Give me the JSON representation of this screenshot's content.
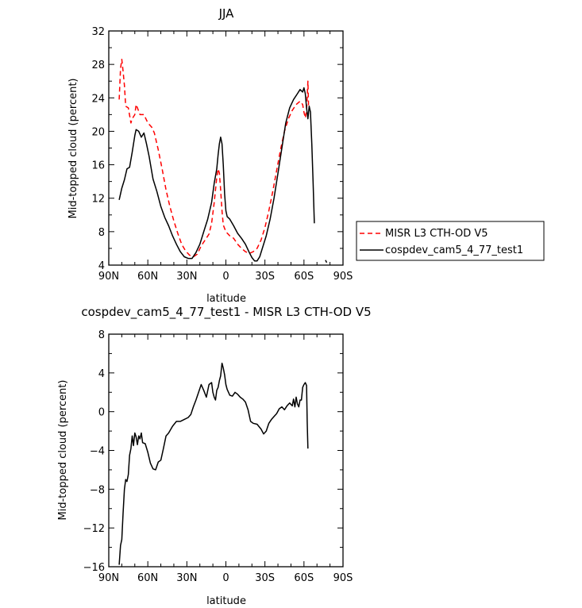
{
  "chart_data": [
    {
      "type": "line",
      "title": "JJA",
      "xlabel": "latitude",
      "ylabel": "Mid-topped cloud (percent)",
      "xlim": [
        90,
        -90
      ],
      "ylim": [
        4,
        32
      ],
      "x_ticks": [
        90,
        60,
        30,
        0,
        -30,
        -60,
        -90
      ],
      "x_tick_labels": [
        "90N",
        "60N",
        "30N",
        "0",
        "30S",
        "60S",
        "90S"
      ],
      "y_ticks": [
        4,
        8,
        12,
        16,
        20,
        24,
        28,
        32
      ],
      "y_tick_labels": [
        "4",
        "8",
        "12",
        "16",
        "20",
        "24",
        "28",
        "32"
      ],
      "legend_position": "right",
      "series": [
        {
          "name": "MISR L3 CTH-OD V5",
          "color": "#ff0000",
          "dash": "dashed",
          "points": [
            [
              82,
              23.8
            ],
            [
              81,
              27.5
            ],
            [
              80,
              28.6
            ],
            [
              79,
              27.2
            ],
            [
              78,
              25.5
            ],
            [
              77,
              23.0
            ],
            [
              75,
              22.8
            ],
            [
              73,
              21.0
            ],
            [
              72,
              21.5
            ],
            [
              70,
              22.0
            ],
            [
              69,
              23.2
            ],
            [
              68,
              22.8
            ],
            [
              66,
              22.0
            ],
            [
              63,
              22.0
            ],
            [
              60,
              21.0
            ],
            [
              57,
              20.5
            ],
            [
              55,
              19.8
            ],
            [
              52,
              17.8
            ],
            [
              49,
              15.5
            ],
            [
              46,
              13.0
            ],
            [
              43,
              11.0
            ],
            [
              40,
              9.3
            ],
            [
              37,
              7.8
            ],
            [
              34,
              6.5
            ],
            [
              31,
              5.7
            ],
            [
              28,
              5.2
            ],
            [
              25,
              5.0
            ],
            [
              22,
              5.3
            ],
            [
              19,
              6.3
            ],
            [
              16,
              7.0
            ],
            [
              13,
              7.7
            ],
            [
              11,
              9.0
            ],
            [
              9,
              11.5
            ],
            [
              7,
              14.5
            ],
            [
              6,
              15.5
            ],
            [
              5,
              15.0
            ],
            [
              4,
              13.0
            ],
            [
              3,
              10.5
            ],
            [
              2,
              8.8
            ],
            [
              0,
              8.0
            ],
            [
              -3,
              7.5
            ],
            [
              -6,
              7.2
            ],
            [
              -9,
              6.5
            ],
            [
              -12,
              6.0
            ],
            [
              -15,
              5.6
            ],
            [
              -18,
              5.4
            ],
            [
              -21,
              5.6
            ],
            [
              -24,
              6.0
            ],
            [
              -27,
              7.0
            ],
            [
              -30,
              8.5
            ],
            [
              -33,
              10.5
            ],
            [
              -36,
              12.8
            ],
            [
              -39,
              15.3
            ],
            [
              -42,
              17.8
            ],
            [
              -45,
              20.0
            ],
            [
              -48,
              21.5
            ],
            [
              -51,
              22.5
            ],
            [
              -54,
              23.2
            ],
            [
              -57,
              23.6
            ],
            [
              -59,
              23.2
            ],
            [
              -60,
              22.3
            ],
            [
              -61,
              21.6
            ],
            [
              -62,
              22.5
            ],
            [
              -63,
              26.0
            ],
            [
              -63.5,
              23.0
            ]
          ]
        },
        {
          "name": "cospdev_cam5_4_77_test1",
          "color": "#000000",
          "dash": "solid",
          "points": [
            [
              82,
              11.8
            ],
            [
              80,
              13.2
            ],
            [
              78,
              14.2
            ],
            [
              76,
              15.5
            ],
            [
              74,
              15.7
            ],
            [
              72,
              17.5
            ],
            [
              70,
              19.5
            ],
            [
              69,
              20.2
            ],
            [
              67,
              20.0
            ],
            [
              65,
              19.3
            ],
            [
              63,
              19.8
            ],
            [
              61,
              18.5
            ],
            [
              59,
              17.0
            ],
            [
              56,
              14.3
            ],
            [
              53,
              12.8
            ],
            [
              50,
              11.0
            ],
            [
              47,
              9.7
            ],
            [
              44,
              8.7
            ],
            [
              41,
              7.5
            ],
            [
              38,
              6.5
            ],
            [
              35,
              5.6
            ],
            [
              32,
              5.0
            ],
            [
              29,
              4.8
            ],
            [
              26,
              4.8
            ],
            [
              23,
              5.5
            ],
            [
              20,
              6.5
            ],
            [
              17,
              8.0
            ],
            [
              14,
              9.5
            ],
            [
              11,
              11.5
            ],
            [
              9,
              13.8
            ],
            [
              7,
              15.5
            ],
            [
              6,
              17.2
            ],
            [
              5,
              18.5
            ],
            [
              4,
              19.3
            ],
            [
              3,
              18.5
            ],
            [
              2,
              16.0
            ],
            [
              1,
              12.5
            ],
            [
              0,
              10.5
            ],
            [
              -1,
              9.8
            ],
            [
              -3,
              9.5
            ],
            [
              -6,
              8.7
            ],
            [
              -9,
              7.8
            ],
            [
              -12,
              7.2
            ],
            [
              -15,
              6.5
            ],
            [
              -18,
              5.5
            ],
            [
              -20,
              4.9
            ],
            [
              -22,
              4.5
            ],
            [
              -24,
              4.5
            ],
            [
              -26,
              5.0
            ],
            [
              -28,
              6.0
            ],
            [
              -31,
              7.5
            ],
            [
              -34,
              9.5
            ],
            [
              -37,
              12.0
            ],
            [
              -40,
              15.0
            ],
            [
              -43,
              18.0
            ],
            [
              -46,
              21.0
            ],
            [
              -49,
              22.8
            ],
            [
              -52,
              23.8
            ],
            [
              -55,
              24.5
            ],
            [
              -57,
              25.0
            ],
            [
              -59,
              24.7
            ],
            [
              -60,
              25.2
            ],
            [
              -61,
              24.5
            ],
            [
              -62,
              22.8
            ],
            [
              -63,
              21.5
            ],
            [
              -64,
              23.0
            ],
            [
              -65,
              22.3
            ],
            [
              -66,
              18.5
            ],
            [
              -67,
              14.0
            ],
            [
              -68,
              9.0
            ]
          ]
        },
        {
          "name": "",
          "color": "#000000",
          "dash": "solid",
          "points": [
            [
              -76.5,
              4.6
            ],
            [
              -77.5,
              4.3
            ]
          ]
        }
      ]
    },
    {
      "type": "line",
      "title": "cospdev_cam5_4_77_test1 - MISR L3 CTH-OD V5",
      "xlabel": "latitude",
      "ylabel": "Mid-topped cloud (percent)",
      "xlim": [
        90,
        -90
      ],
      "ylim": [
        -16,
        8
      ],
      "x_ticks": [
        90,
        60,
        30,
        0,
        -30,
        -60,
        -90
      ],
      "x_tick_labels": [
        "90N",
        "60N",
        "30N",
        "0",
        "30S",
        "60S",
        "90S"
      ],
      "y_ticks": [
        -16,
        -12,
        -8,
        -4,
        0,
        4,
        8
      ],
      "y_tick_labels": [
        "−16",
        "−12",
        "−8",
        "−4",
        "0",
        "4",
        "8"
      ],
      "series": [
        {
          "name": "",
          "color": "#000000",
          "dash": "solid",
          "points": [
            [
              82,
              -15.8
            ],
            [
              81,
              -13.8
            ],
            [
              80,
              -13.2
            ],
            [
              79,
              -10.5
            ],
            [
              78,
              -8.0
            ],
            [
              77,
              -7.0
            ],
            [
              76,
              -7.2
            ],
            [
              75,
              -6.5
            ],
            [
              74,
              -4.5
            ],
            [
              73,
              -3.8
            ],
            [
              72,
              -2.5
            ],
            [
              71,
              -3.5
            ],
            [
              70,
              -2.2
            ],
            [
              69,
              -2.6
            ],
            [
              68,
              -3.4
            ],
            [
              67,
              -2.5
            ],
            [
              66,
              -2.8
            ],
            [
              65,
              -2.2
            ],
            [
              64,
              -3.2
            ],
            [
              62,
              -3.3
            ],
            [
              60,
              -4.2
            ],
            [
              58,
              -5.3
            ],
            [
              56,
              -5.9
            ],
            [
              54,
              -6.0
            ],
            [
              52,
              -5.2
            ],
            [
              50,
              -5.0
            ],
            [
              48,
              -3.8
            ],
            [
              46,
              -2.5
            ],
            [
              44,
              -2.2
            ],
            [
              41,
              -1.5
            ],
            [
              38,
              -1.0
            ],
            [
              35,
              -1.0
            ],
            [
              32,
              -0.8
            ],
            [
              29,
              -0.6
            ],
            [
              27,
              -0.3
            ],
            [
              25,
              0.5
            ],
            [
              23,
              1.2
            ],
            [
              21,
              2.0
            ],
            [
              19,
              2.8
            ],
            [
              17,
              2.2
            ],
            [
              15,
              1.5
            ],
            [
              13,
              2.8
            ],
            [
              11,
              3.0
            ],
            [
              10,
              2.0
            ],
            [
              9,
              1.5
            ],
            [
              8,
              1.2
            ],
            [
              7,
              2.2
            ],
            [
              6,
              2.5
            ],
            [
              5,
              3.2
            ],
            [
              4,
              3.7
            ],
            [
              3,
              5.0
            ],
            [
              2,
              4.5
            ],
            [
              1,
              3.8
            ],
            [
              0,
              2.8
            ],
            [
              -1,
              2.3
            ],
            [
              -2,
              2.0
            ],
            [
              -3,
              1.7
            ],
            [
              -5,
              1.6
            ],
            [
              -7,
              2.0
            ],
            [
              -9,
              1.8
            ],
            [
              -11,
              1.5
            ],
            [
              -13,
              1.3
            ],
            [
              -15,
              1.0
            ],
            [
              -17,
              0.2
            ],
            [
              -19,
              -1.0
            ],
            [
              -21,
              -1.2
            ],
            [
              -24,
              -1.3
            ],
            [
              -27,
              -1.8
            ],
            [
              -29,
              -2.3
            ],
            [
              -31,
              -2.0
            ],
            [
              -33,
              -1.2
            ],
            [
              -35,
              -0.8
            ],
            [
              -37,
              -0.5
            ],
            [
              -39,
              -0.2
            ],
            [
              -41,
              0.3
            ],
            [
              -43,
              0.5
            ],
            [
              -45,
              0.2
            ],
            [
              -47,
              0.6
            ],
            [
              -49,
              0.9
            ],
            [
              -51,
              0.6
            ],
            [
              -52,
              1.3
            ],
            [
              -53,
              0.5
            ],
            [
              -54,
              1.5
            ],
            [
              -55,
              0.8
            ],
            [
              -56,
              0.5
            ],
            [
              -57,
              1.2
            ],
            [
              -58,
              1.2
            ],
            [
              -59,
              2.5
            ],
            [
              -60,
              2.8
            ],
            [
              -61,
              3.0
            ],
            [
              -62,
              2.7
            ],
            [
              -62.5,
              -1.0
            ],
            [
              -63,
              -3.8
            ]
          ]
        }
      ]
    }
  ],
  "legend": {
    "items": [
      {
        "label": "MISR L3 CTH-OD V5",
        "color": "#ff0000",
        "dash": "dashed"
      },
      {
        "label": "cospdev_cam5_4_77_test1",
        "color": "#000000",
        "dash": "solid"
      }
    ]
  }
}
